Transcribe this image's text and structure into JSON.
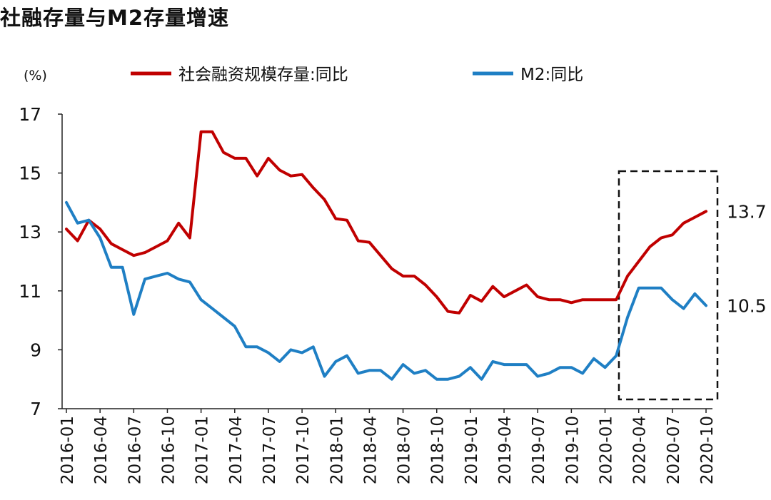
{
  "title": "社融存量与M2存量增速",
  "chart_data": {
    "type": "line",
    "unit_label": "(%)",
    "ylim": [
      7,
      17
    ],
    "yticks": [
      7,
      9,
      11,
      13,
      15,
      17
    ],
    "x": [
      "2016-01",
      "2016-02",
      "2016-03",
      "2016-04",
      "2016-05",
      "2016-06",
      "2016-07",
      "2016-08",
      "2016-09",
      "2016-10",
      "2016-11",
      "2016-12",
      "2017-01",
      "2017-02",
      "2017-03",
      "2017-04",
      "2017-05",
      "2017-06",
      "2017-07",
      "2017-08",
      "2017-09",
      "2017-10",
      "2017-11",
      "2017-12",
      "2018-01",
      "2018-02",
      "2018-03",
      "2018-04",
      "2018-05",
      "2018-06",
      "2018-07",
      "2018-08",
      "2018-09",
      "2018-10",
      "2018-11",
      "2018-12",
      "2019-01",
      "2019-02",
      "2019-03",
      "2019-04",
      "2019-05",
      "2019-06",
      "2019-07",
      "2019-08",
      "2019-09",
      "2019-10",
      "2019-11",
      "2019-12",
      "2020-01",
      "2020-02",
      "2020-03",
      "2020-04",
      "2020-05",
      "2020-06",
      "2020-07",
      "2020-08",
      "2020-09",
      "2020-10"
    ],
    "xtick_labels": [
      "2016-01",
      "2016-04",
      "2016-07",
      "2016-10",
      "2017-01",
      "2017-04",
      "2017-07",
      "2017-10",
      "2018-01",
      "2018-04",
      "2018-07",
      "2018-10",
      "2019-01",
      "2019-04",
      "2019-07",
      "2019-10",
      "2020-01",
      "2020-04",
      "2020-07",
      "2020-10"
    ],
    "series": [
      {
        "name": "社会融资规模存量:同比",
        "color": "#c00000",
        "values": [
          13.1,
          12.7,
          13.4,
          13.1,
          12.6,
          12.4,
          12.2,
          12.3,
          12.5,
          12.7,
          13.3,
          12.8,
          16.4,
          16.4,
          15.7,
          15.5,
          15.5,
          14.9,
          15.5,
          15.1,
          14.9,
          14.95,
          14.5,
          14.1,
          13.45,
          13.4,
          12.7,
          12.65,
          12.2,
          11.75,
          11.5,
          11.5,
          11.2,
          10.8,
          10.3,
          10.25,
          10.85,
          10.65,
          11.15,
          10.8,
          11.0,
          11.2,
          10.8,
          10.7,
          10.7,
          10.6,
          10.7,
          10.7,
          10.7,
          10.7,
          11.5,
          12.0,
          12.5,
          12.8,
          12.9,
          13.3,
          13.5,
          13.7
        ]
      },
      {
        "name": "M2:同比",
        "color": "#1f7fc4",
        "values": [
          14.0,
          13.3,
          13.4,
          12.8,
          11.8,
          11.8,
          10.2,
          11.4,
          11.5,
          11.6,
          11.4,
          11.3,
          10.7,
          10.4,
          10.1,
          9.8,
          9.1,
          9.1,
          8.9,
          8.6,
          9.0,
          8.9,
          9.1,
          8.1,
          8.6,
          8.8,
          8.2,
          8.3,
          8.3,
          8.0,
          8.5,
          8.2,
          8.3,
          8.0,
          8.0,
          8.1,
          8.4,
          8.0,
          8.6,
          8.5,
          8.5,
          8.5,
          8.1,
          8.2,
          8.4,
          8.4,
          8.2,
          8.7,
          8.4,
          8.8,
          10.1,
          11.1,
          11.1,
          11.1,
          10.7,
          10.4,
          10.9,
          10.5
        ]
      }
    ],
    "end_labels": [
      "13.7",
      "10.5"
    ],
    "highlight_box": {
      "from": "2020-03",
      "to": "2020-10",
      "style": "dashed"
    },
    "grid": false,
    "legend_position": "top"
  }
}
